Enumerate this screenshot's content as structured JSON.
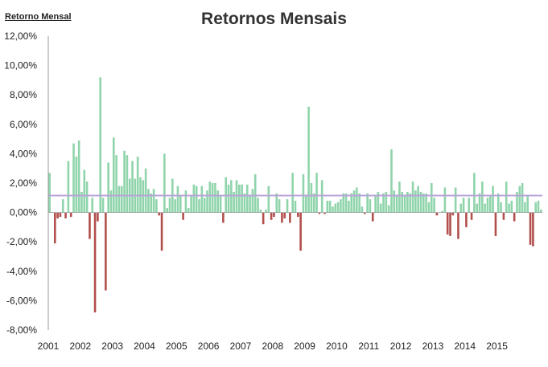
{
  "corner_label": "Retorno Mensal",
  "colors": {
    "positive": "#8fd4ab",
    "negative": "#b14f4c",
    "average_line": "#b9a3d9",
    "axis": "#9a9a9a"
  },
  "chart_data": {
    "type": "bar",
    "title": "Retornos Mensais",
    "xlabel": "",
    "ylabel": "",
    "ylim": [
      -8,
      12
    ],
    "y_ticks": [
      "12,00%",
      "10,00%",
      "8,00%",
      "6,00%",
      "4,00%",
      "2,00%",
      "0,00%",
      "-2,00%",
      "-4,00%",
      "-6,00%",
      "-8,00%"
    ],
    "x_ticks": [
      "2001",
      "2002",
      "2003",
      "2004",
      "2005",
      "2006",
      "2007",
      "2008",
      "2009",
      "2010",
      "2011",
      "2012",
      "2013",
      "2014",
      "2015"
    ],
    "grid": false,
    "average": 1.15,
    "period_start": "2001-01",
    "values": [
      2.7,
      0.0,
      -2.1,
      -0.4,
      -0.3,
      0.9,
      -0.4,
      3.5,
      -0.3,
      4.7,
      3.8,
      4.9,
      1.4,
      2.9,
      2.1,
      -1.8,
      1.0,
      -6.8,
      -0.6,
      9.2,
      1.0,
      -5.3,
      3.4,
      1.5,
      5.1,
      3.9,
      1.8,
      1.8,
      4.2,
      3.9,
      2.3,
      3.5,
      2.3,
      3.8,
      2.4,
      2.2,
      3.0,
      1.6,
      1.3,
      1.6,
      0.9,
      -0.2,
      -2.6,
      4.0,
      0.3,
      1.0,
      2.3,
      0.9,
      1.8,
      1.1,
      -0.5,
      1.5,
      0.3,
      1.2,
      1.9,
      1.8,
      0.9,
      1.8,
      1.0,
      1.5,
      2.1,
      2.0,
      2.0,
      1.5,
      1.1,
      -0.7,
      2.4,
      1.9,
      2.2,
      1.4,
      2.2,
      1.9,
      1.9,
      1.3,
      1.9,
      1.1,
      1.6,
      2.6,
      1.0,
      0.2,
      -0.8,
      0.2,
      1.8,
      -0.5,
      -0.3,
      1.3,
      0.9,
      -0.7,
      -0.4,
      0.9,
      -0.7,
      2.7,
      0.8,
      -0.3,
      -2.6,
      2.6,
      1.1,
      7.2,
      2.0,
      1.3,
      2.7,
      -0.1,
      2.2,
      -0.1,
      0.8,
      0.8,
      0.4,
      0.6,
      0.7,
      0.9,
      1.3,
      1.3,
      0.8,
      1.3,
      1.5,
      1.7,
      1.3,
      0.4,
      -0.1,
      1.3,
      0.9,
      -0.6,
      1.2,
      1.4,
      0.6,
      1.3,
      1.4,
      0.5,
      4.3,
      1.5,
      1.2,
      2.1,
      1.4,
      1.2,
      1.4,
      1.3,
      2.1,
      1.5,
      1.8,
      1.4,
      1.3,
      1.3,
      0.7,
      2.0,
      1.0,
      -0.2,
      0.0,
      0.1,
      1.7,
      -1.5,
      -1.6,
      -0.2,
      1.7,
      -1.8,
      0.6,
      1.0,
      -1.0,
      1.0,
      -0.5,
      2.7,
      0.6,
      1.3,
      2.1,
      0.6,
      1.0,
      1.2,
      1.8,
      -1.6,
      1.3,
      0.7,
      -0.5,
      2.1,
      0.6,
      0.8,
      -0.6,
      1.4,
      1.8,
      2.0,
      0.7,
      1.2,
      -2.2,
      -2.3,
      0.7,
      0.8,
      0.2
    ]
  }
}
